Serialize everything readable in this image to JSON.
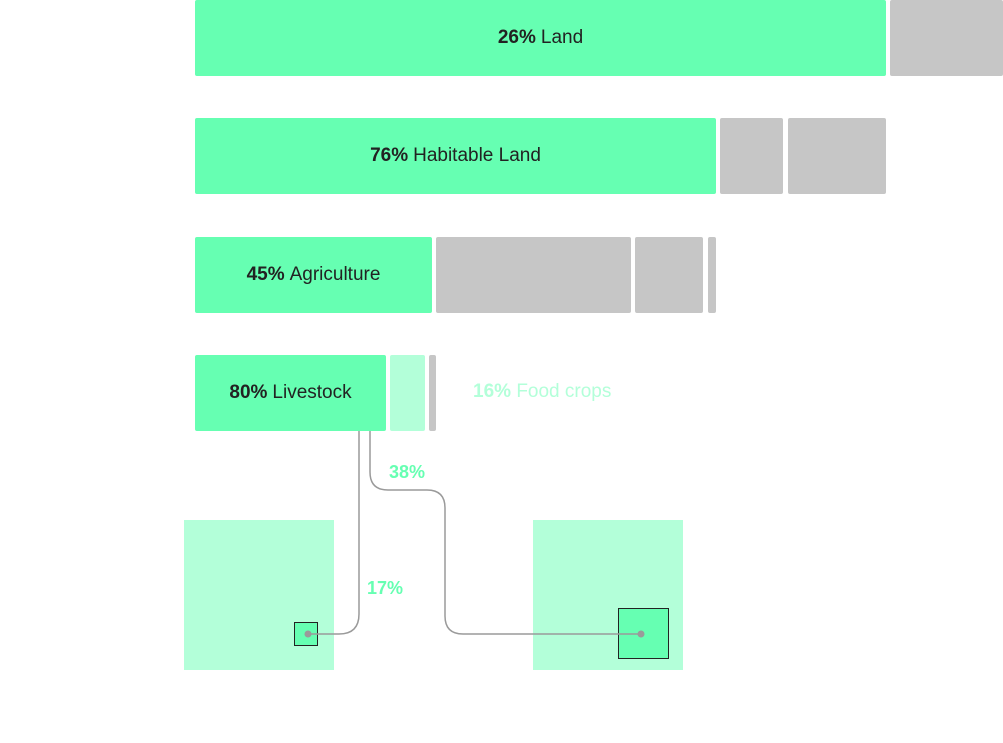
{
  "rows": {
    "land": {
      "pct": "26%",
      "label": "Land"
    },
    "habitable": {
      "pct": "76%",
      "label": "Habitable Land"
    },
    "agriculture": {
      "pct": "45%",
      "label": "Agriculture"
    },
    "livestock": {
      "pct": "80%",
      "label": "Livestock"
    }
  },
  "food_crops": {
    "pct": "16%",
    "label": "Food crops"
  },
  "connectors": {
    "left_pct": "17%",
    "right_pct": "38%"
  },
  "colors": {
    "highlight": "#66ffb2",
    "pale": "#b3ffd9",
    "inactive": "#c6c6c6",
    "line": "#9a9a9a"
  }
}
